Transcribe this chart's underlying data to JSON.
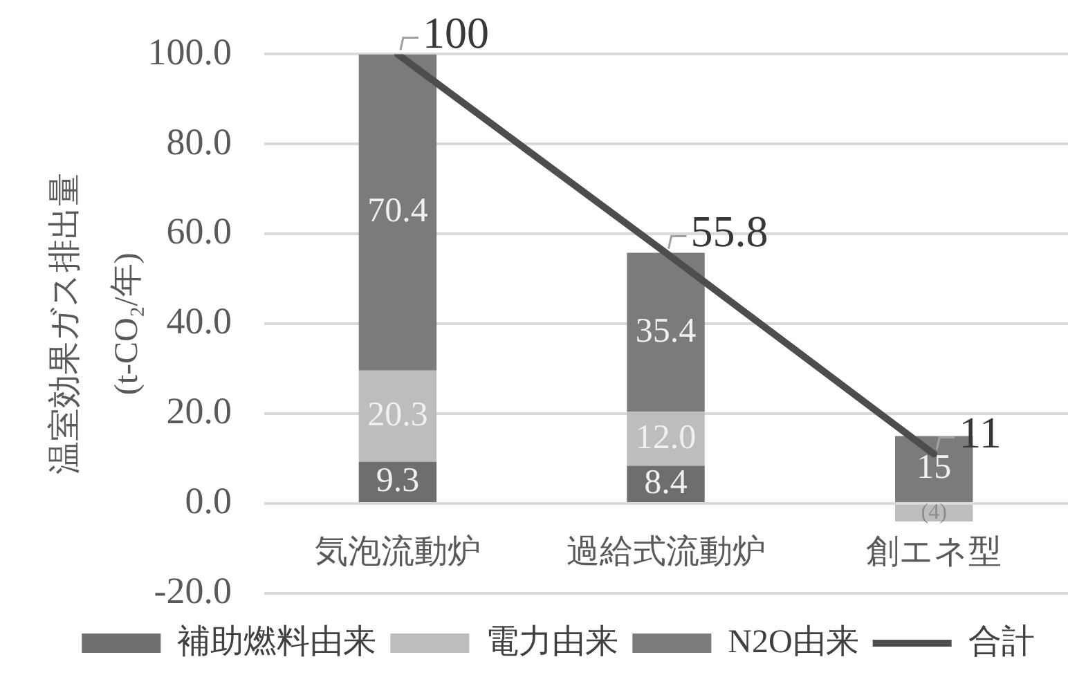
{
  "chart_data": {
    "type": "bar",
    "stacked": true,
    "categories": [
      "気泡流動炉",
      "過給式流動炉",
      "創エネ型"
    ],
    "ylabel": "温室効果ガス排出量\n(t-CO₂/年)",
    "series": [
      {
        "name": "補助燃料由来",
        "color": "#6e6e6e",
        "values": [
          9.3,
          8.4,
          null
        ],
        "value_labels": [
          "9.3",
          "8.4",
          null
        ]
      },
      {
        "name": "電力由来",
        "color": "#bdbdbd",
        "values": [
          20.3,
          12.0,
          -4
        ],
        "value_labels": [
          "20.3",
          "12.0",
          "(4)"
        ]
      },
      {
        "name": "N2O由来",
        "color": "#7b7b7b",
        "values": [
          70.4,
          35.4,
          15
        ],
        "value_labels": [
          "70.4",
          "35.4",
          "15"
        ]
      },
      {
        "name": "合計",
        "type": "line",
        "color": "#4d4d4d",
        "values": [
          100,
          55.8,
          11
        ],
        "value_labels": [
          "100",
          "55.8",
          "11"
        ]
      }
    ],
    "ylim": [
      -20,
      100
    ],
    "yticks": [
      {
        "value": -20,
        "label": "-20.0"
      },
      {
        "value": 0,
        "label": "0.0"
      },
      {
        "value": 20,
        "label": "20.0"
      },
      {
        "value": 40,
        "label": "40.0"
      },
      {
        "value": 60,
        "label": "60.0"
      },
      {
        "value": 80,
        "label": "80.0"
      },
      {
        "value": 100,
        "label": "100.0"
      }
    ],
    "grid": "y",
    "legend": "bottom",
    "marker": "none"
  }
}
